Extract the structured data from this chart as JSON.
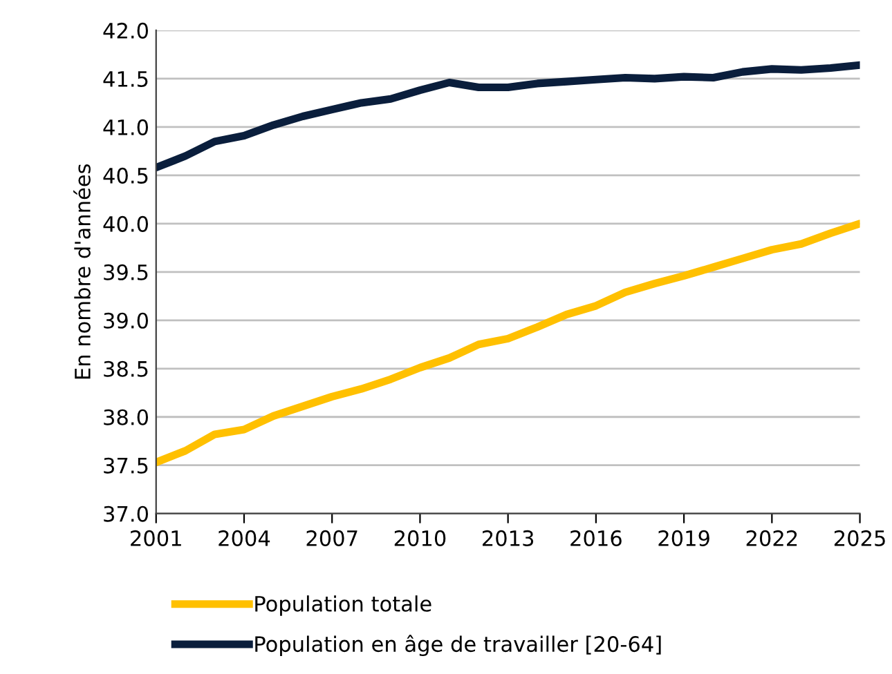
{
  "chart_data": {
    "type": "line",
    "ylabel": "En nombre d'années",
    "x": [
      2001,
      2002,
      2003,
      2004,
      2005,
      2006,
      2007,
      2008,
      2009,
      2010,
      2011,
      2012,
      2013,
      2014,
      2015,
      2016,
      2017,
      2018,
      2019,
      2020,
      2021,
      2022,
      2023,
      2024,
      2025
    ],
    "series": [
      {
        "name": "Population totale",
        "color": "#ffc000",
        "values": [
          37.53,
          37.65,
          37.82,
          37.87,
          38.01,
          38.11,
          38.21,
          38.29,
          38.39,
          38.51,
          38.61,
          38.75,
          38.81,
          38.93,
          39.06,
          39.15,
          39.29,
          39.38,
          39.46,
          39.55,
          39.64,
          39.73,
          39.79,
          39.9,
          40.0
        ]
      },
      {
        "name": "Population en âge de travailler [20-64]",
        "color": "#0a1e3c",
        "values": [
          40.58,
          40.7,
          40.85,
          40.91,
          41.02,
          41.11,
          41.18,
          41.25,
          41.29,
          41.38,
          41.46,
          41.41,
          41.41,
          41.45,
          41.47,
          41.49,
          41.51,
          41.5,
          41.52,
          41.51,
          41.57,
          41.6,
          41.59,
          41.61,
          41.64
        ]
      }
    ],
    "xlim": [
      2001,
      2025
    ],
    "xticks": [
      2001,
      2004,
      2007,
      2010,
      2013,
      2016,
      2019,
      2022,
      2025
    ],
    "ylim": [
      37.0,
      42.0
    ],
    "yticks": [
      {
        "value": 37.0,
        "label": "37.0"
      },
      {
        "value": 37.5,
        "label": "37.5"
      },
      {
        "value": 38.0,
        "label": "38.0"
      },
      {
        "value": 38.5,
        "label": "38.5"
      },
      {
        "value": 39.0,
        "label": "39.0"
      },
      {
        "value": 39.5,
        "label": "39.5"
      },
      {
        "value": 40.0,
        "label": "40.0"
      },
      {
        "value": 40.5,
        "label": "40.5"
      },
      {
        "value": 41.0,
        "label": "41.0"
      },
      {
        "value": 41.5,
        "label": "41.5"
      },
      {
        "value": 42.0,
        "label": "42.0"
      }
    ],
    "grid": "y",
    "legend": "bottom",
    "marker": "none",
    "line_style": "solid"
  }
}
